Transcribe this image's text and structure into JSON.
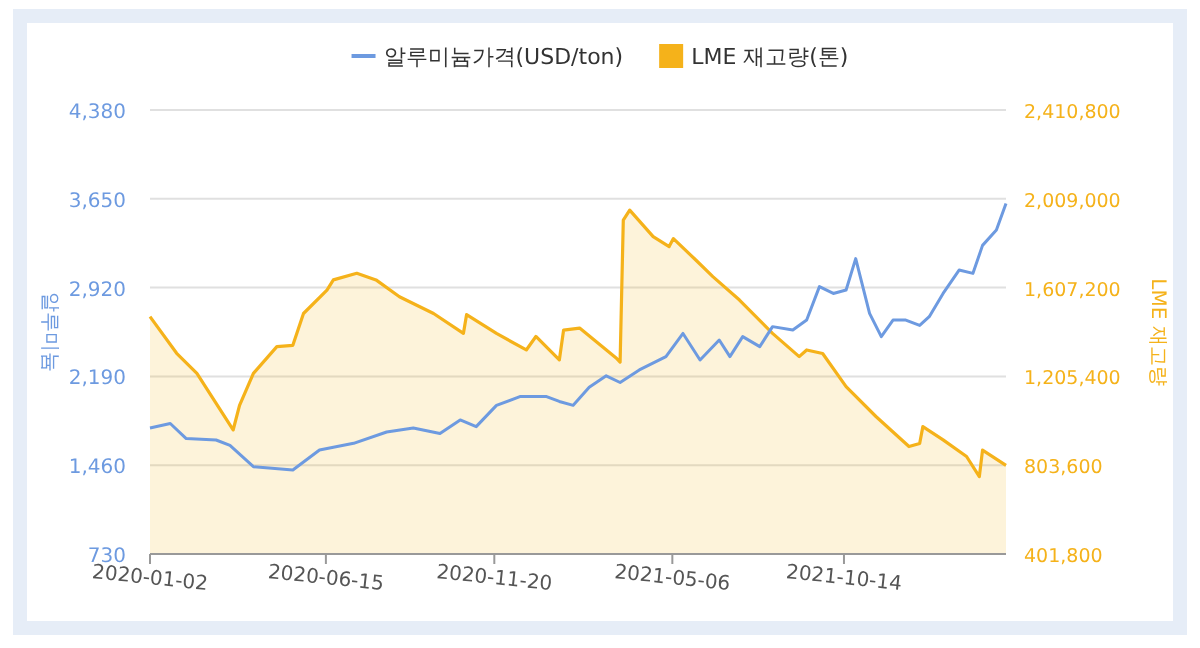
{
  "chart_data": {
    "type": "line",
    "ylabel": "알루미늄",
    "y2label": "LME 재고량",
    "legend": "top",
    "grid": "y",
    "xlim": [
      "2020-01-02",
      "2022-03-15"
    ],
    "xticks": [
      "2020-01-02",
      "2020-06-15",
      "2020-11-20",
      "2021-05-06",
      "2021-10-14"
    ],
    "ylim": [
      730,
      4380
    ],
    "yticks": [
      730,
      {
        "value": 1460,
        "label": "1,460"
      },
      {
        "value": 2190,
        "label": "2,190"
      },
      {
        "value": 2920,
        "label": "2,920"
      },
      {
        "value": 3650,
        "label": "3,650"
      },
      {
        "value": 4380,
        "label": "4,380"
      }
    ],
    "y2lim": [
      401800,
      2410800
    ],
    "y2ticks": [
      {
        "value": 401800,
        "label": "401,800"
      },
      {
        "value": 803600,
        "label": "803,600"
      },
      {
        "value": 1205400,
        "label": "1,205,400"
      },
      {
        "value": 1607200,
        "label": "1,607,200"
      },
      {
        "value": 2009000,
        "label": "2,009,000"
      },
      {
        "value": 2410800,
        "label": "2,410,800"
      }
    ],
    "series": [
      {
        "name": "LME 재고량(톤)",
        "type": "area",
        "axis": "y2",
        "color": "#f5b21a",
        "x": [
          "2020-01-02",
          "2020-01-27",
          "2020-02-15",
          "2020-03-20",
          "2020-03-26",
          "2020-04-08",
          "2020-04-30",
          "2020-05-15",
          "2020-05-25",
          "2020-06-16",
          "2020-06-22",
          "2020-07-14",
          "2020-08-01",
          "2020-08-23",
          "2020-09-24",
          "2020-10-22",
          "2020-10-25",
          "2020-11-22",
          "2020-12-20",
          "2020-12-29",
          "2021-01-20",
          "2021-01-24",
          "2021-02-08",
          "2021-03-14",
          "2021-03-18",
          "2021-03-21",
          "2021-03-27",
          "2021-04-18",
          "2021-05-03",
          "2021-05-07",
          "2021-05-28",
          "2021-06-13",
          "2021-07-08",
          "2021-08-08",
          "2021-09-02",
          "2021-09-09",
          "2021-09-24",
          "2021-10-16",
          "2021-11-13",
          "2021-12-14",
          "2021-12-24",
          "2021-12-27",
          "2022-01-15",
          "2022-02-06",
          "2022-02-18",
          "2022-02-21",
          "2022-03-15"
        ],
        "values": [
          1476000,
          1310000,
          1219000,
          963000,
          1074000,
          1219000,
          1340000,
          1346000,
          1490000,
          1596000,
          1642000,
          1672000,
          1642000,
          1566000,
          1490000,
          1400000,
          1485000,
          1400000,
          1325000,
          1386000,
          1280000,
          1415000,
          1424000,
          1290000,
          1270000,
          1913000,
          1958000,
          1838000,
          1793000,
          1829000,
          1732000,
          1657000,
          1551000,
          1400000,
          1295000,
          1325000,
          1309000,
          1159000,
          1024000,
          888000,
          902000,
          978000,
          918000,
          843000,
          752000,
          872000,
          803000
        ]
      },
      {
        "name": "알루미늄가격(USD/ton)",
        "color": "#6d9ae0",
        "x": [
          "2020-01-02",
          "2020-01-21",
          "2020-02-05",
          "2020-03-04",
          "2020-03-17",
          "2020-04-08",
          "2020-05-15",
          "2020-06-09",
          "2020-07-11",
          "2020-08-11",
          "2020-09-05",
          "2020-09-30",
          "2020-10-19",
          "2020-11-03",
          "2020-11-22",
          "2020-12-14",
          "2021-01-08",
          "2021-01-20",
          "2021-02-02",
          "2021-02-17",
          "2021-03-05",
          "2021-03-18",
          "2021-04-05",
          "2021-04-30",
          "2021-05-16",
          "2021-06-01",
          "2021-06-19",
          "2021-06-29",
          "2021-07-11",
          "2021-07-27",
          "2021-08-08",
          "2021-08-27",
          "2021-09-09",
          "2021-09-21",
          "2021-10-04",
          "2021-10-16",
          "2021-10-25",
          "2021-11-07",
          "2021-11-18",
          "2021-11-29",
          "2021-12-11",
          "2021-12-24",
          "2022-01-02",
          "2022-01-15",
          "2022-01-30",
          "2022-02-12",
          "2022-02-21",
          "2022-03-06",
          "2022-03-15"
        ],
        "values": [
          1766,
          1803,
          1679,
          1667,
          1623,
          1448,
          1420,
          1585,
          1640,
          1733,
          1766,
          1721,
          1832,
          1777,
          1952,
          2024,
          2024,
          1984,
          1952,
          2100,
          2195,
          2140,
          2243,
          2353,
          2543,
          2325,
          2489,
          2353,
          2517,
          2435,
          2599,
          2571,
          2653,
          2928,
          2872,
          2900,
          3158,
          2708,
          2517,
          2653,
          2653,
          2609,
          2681,
          2872,
          3064,
          3037,
          3267,
          3393,
          3612
        ]
      }
    ]
  }
}
